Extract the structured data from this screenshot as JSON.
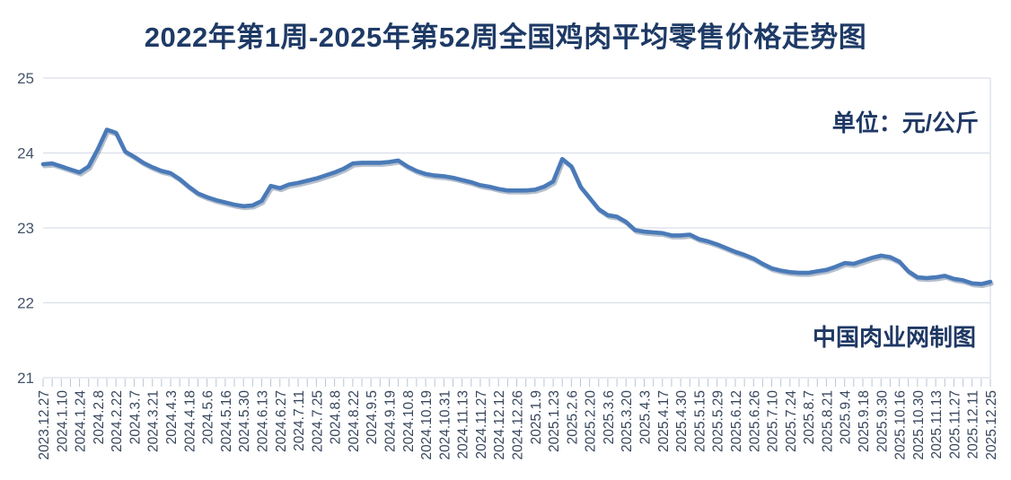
{
  "title": "2022年第1周-2025年第52周全国鸡肉平均零售价格走势图",
  "unit_label": "单位：元/公斤",
  "watermark": "中国肉业网制图",
  "colors": {
    "title_text": "#1e3a66",
    "annotation_text": "#1f3864",
    "line": "#4a7ab8",
    "line_shadow": "rgba(70,95,130,0.40)",
    "axis_text": "#44546a",
    "x_label_text": "#37465c",
    "gridline": "#d9dfe8",
    "minor_tick": "#b9c6d6"
  },
  "chart_data": {
    "type": "line",
    "title": "2022年第1周-2025年第52周全国鸡肉平均零售价格走势图",
    "ylabel": "元/公斤",
    "xlabel": "",
    "ylim": [
      21,
      25
    ],
    "y_ticks": [
      21,
      22,
      23,
      24,
      25
    ],
    "grid": "horizontal",
    "legend": "none",
    "label_every_n_points": 2,
    "x_tick_labels": [
      "2023.12.27",
      "2024.1.10",
      "2024.1.24",
      "2024.2.8",
      "2024.2.22",
      "2024.3.7",
      "2024.3.21",
      "2024.4.3",
      "2024.4.18",
      "2024.5.6",
      "2024.5.16",
      "2024.5.30",
      "2024.6.13",
      "2024.6.27",
      "2024.7.11",
      "2024.7.25",
      "2024.8.8",
      "2024.8.22",
      "2024.9.5",
      "2024.9.19",
      "2024.10.8",
      "2024.10.19",
      "2024.10.31",
      "2024.11.13",
      "2024.11.27",
      "2024.12.12",
      "2024.12.26",
      "2025.1.9",
      "2025.1.23",
      "2025.2.6",
      "2025.2.20",
      "2025.3.6",
      "2025.3.20",
      "2025.4.3",
      "2025.4.17",
      "2025.4.30",
      "2025.5.15",
      "2025.5.29",
      "2025.6.12",
      "2025.6.26",
      "2025.7.10",
      "2025.7.24",
      "2025.8.7",
      "2025.8.21",
      "2025.9.4",
      "2025.9.18",
      "2025.9.30",
      "2025.10.16",
      "2025.10.30",
      "2025.11.13",
      "2025.11.27",
      "2025.12.11",
      "2025.12.25"
    ],
    "values": [
      23.85,
      23.86,
      23.82,
      23.78,
      23.74,
      23.82,
      24.05,
      24.31,
      24.27,
      24.02,
      23.95,
      23.87,
      23.81,
      23.76,
      23.73,
      23.65,
      23.55,
      23.46,
      23.41,
      23.37,
      23.34,
      23.31,
      23.29,
      23.3,
      23.36,
      23.56,
      23.53,
      23.58,
      23.6,
      23.63,
      23.66,
      23.7,
      23.74,
      23.79,
      23.86,
      23.87,
      23.87,
      23.87,
      23.88,
      23.9,
      23.82,
      23.76,
      23.72,
      23.7,
      23.69,
      23.67,
      23.64,
      23.61,
      23.57,
      23.55,
      23.52,
      23.5,
      23.5,
      23.5,
      23.51,
      23.55,
      23.62,
      23.92,
      23.82,
      23.55,
      23.4,
      23.25,
      23.17,
      23.15,
      23.08,
      22.97,
      22.95,
      22.94,
      22.93,
      22.9,
      22.9,
      22.91,
      22.85,
      22.82,
      22.78,
      22.73,
      22.68,
      22.64,
      22.59,
      22.52,
      22.46,
      22.43,
      22.41,
      22.4,
      22.4,
      22.42,
      22.44,
      22.48,
      22.53,
      22.52,
      22.56,
      22.6,
      22.63,
      22.61,
      22.55,
      22.42,
      22.34,
      22.33,
      22.34,
      22.36,
      22.32,
      22.3,
      22.26,
      22.25,
      22.28
    ]
  }
}
